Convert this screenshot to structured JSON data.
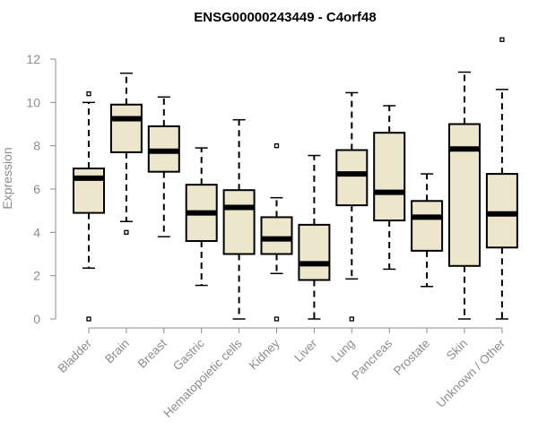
{
  "chart_data": {
    "type": "boxplot",
    "title": "ENSG00000243449 - C4orf48",
    "xlabel": "",
    "ylabel": "Expression",
    "ylim": [
      0,
      12
    ],
    "yticks": [
      0,
      2,
      4,
      6,
      8,
      10,
      12
    ],
    "grid": false,
    "legend": "none",
    "box_fill": "#ede6cd",
    "categories": [
      "Bladder",
      "Brain",
      "Breast",
      "Gastric",
      "Hematopoietic cells",
      "Kidney",
      "Liver",
      "Lung",
      "Pancreas",
      "Prostate",
      "Skin",
      "Unknown / Other"
    ],
    "boxes": [
      {
        "q1": 4.9,
        "median": 6.5,
        "q3": 6.95,
        "whisker_low": 2.35,
        "whisker_high": 10.0,
        "outliers": [
          10.4,
          0.0
        ]
      },
      {
        "q1": 7.7,
        "median": 9.25,
        "q3": 9.9,
        "whisker_low": 4.5,
        "whisker_high": 11.35,
        "outliers": [
          4.0
        ]
      },
      {
        "q1": 6.8,
        "median": 7.75,
        "q3": 8.9,
        "whisker_low": 3.8,
        "whisker_high": 10.25,
        "outliers": []
      },
      {
        "q1": 3.6,
        "median": 4.9,
        "q3": 6.2,
        "whisker_low": 1.55,
        "whisker_high": 7.9,
        "outliers": []
      },
      {
        "q1": 3.0,
        "median": 5.15,
        "q3": 5.95,
        "whisker_low": 0.0,
        "whisker_high": 9.2,
        "outliers": []
      },
      {
        "q1": 3.0,
        "median": 3.7,
        "q3": 4.7,
        "whisker_low": 2.1,
        "whisker_high": 5.6,
        "outliers": [
          8.0,
          0.0
        ]
      },
      {
        "q1": 1.8,
        "median": 2.55,
        "q3": 4.35,
        "whisker_low": 0.0,
        "whisker_high": 7.55,
        "outliers": []
      },
      {
        "q1": 5.25,
        "median": 6.7,
        "q3": 7.8,
        "whisker_low": 1.85,
        "whisker_high": 10.45,
        "outliers": [
          0.0
        ]
      },
      {
        "q1": 4.55,
        "median": 5.85,
        "q3": 8.6,
        "whisker_low": 2.3,
        "whisker_high": 9.85,
        "outliers": []
      },
      {
        "q1": 3.15,
        "median": 4.7,
        "q3": 5.45,
        "whisker_low": 1.5,
        "whisker_high": 6.7,
        "outliers": []
      },
      {
        "q1": 2.45,
        "median": 7.85,
        "q3": 9.0,
        "whisker_low": 0.0,
        "whisker_high": 11.4,
        "outliers": []
      },
      {
        "q1": 3.3,
        "median": 4.85,
        "q3": 6.7,
        "whisker_low": 0.0,
        "whisker_high": 10.6,
        "outliers": [
          12.9
        ]
      }
    ]
  }
}
